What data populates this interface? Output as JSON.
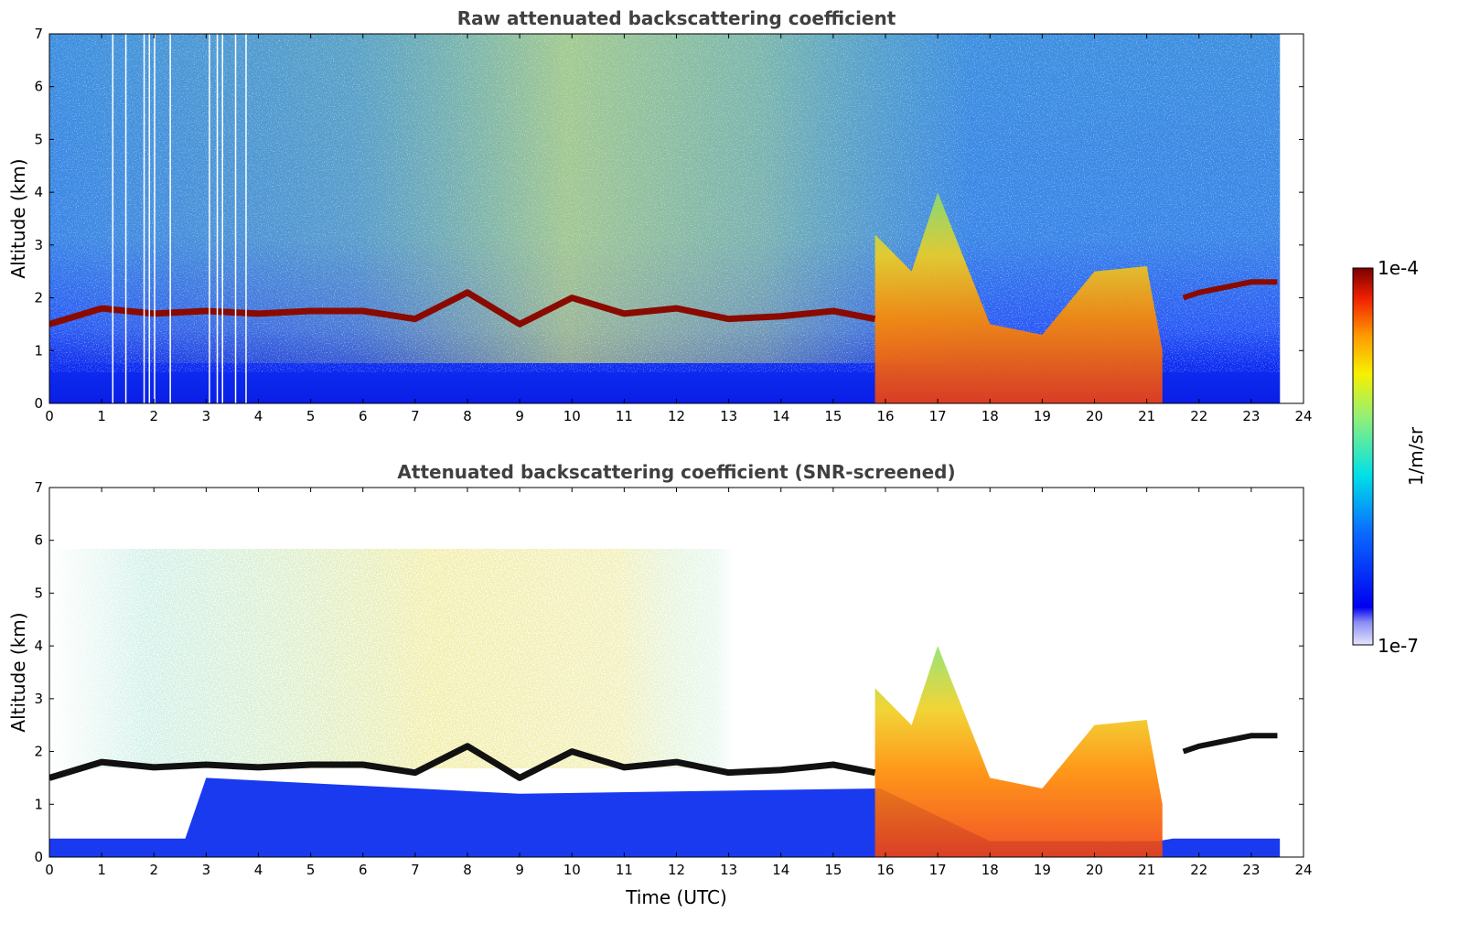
{
  "chart_data": [
    {
      "type": "heatmap",
      "title": "Raw attenuated backscattering coefficient",
      "xlabel": "",
      "ylabel": "Altitude (km)",
      "xlim": [
        0,
        24
      ],
      "ylim": [
        0,
        7
      ],
      "xticks": [
        "0",
        "1",
        "2",
        "3",
        "4",
        "5",
        "6",
        "7",
        "8",
        "9",
        "10",
        "11",
        "12",
        "13",
        "14",
        "15",
        "16",
        "17",
        "18",
        "19",
        "20",
        "21",
        "22",
        "23",
        "24"
      ],
      "yticks": [
        "0",
        "1",
        "2",
        "3",
        "4",
        "5",
        "6",
        "7"
      ],
      "data_extent_hours": 23.55,
      "cloud_layer": {
        "time_h": [
          0.0,
          1.0,
          2.0,
          3.0,
          4.0,
          5.0,
          6.0,
          7.0,
          8.0,
          9.0,
          10.0,
          11.0,
          12.0,
          13.0,
          14.0,
          15.0,
          15.8
        ],
        "altitude_km": [
          1.5,
          1.8,
          1.7,
          1.75,
          1.7,
          1.75,
          1.75,
          1.6,
          2.1,
          1.5,
          2.0,
          1.7,
          1.8,
          1.6,
          1.65,
          1.75,
          1.6
        ]
      },
      "precip_band": {
        "time_h": [
          15.8,
          16.5,
          17.0,
          18.0,
          19.0,
          20.0,
          21.0
        ],
        "top_km": [
          3.2,
          2.5,
          4.0,
          1.5,
          1.3,
          2.5,
          2.6
        ]
      },
      "late_layer": {
        "time_h": [
          21.7,
          22.0,
          23.0,
          23.5
        ],
        "altitude_km": [
          2.0,
          2.1,
          2.3,
          2.3
        ]
      }
    },
    {
      "type": "heatmap",
      "title": "Attenuated backscattering coefficient (SNR-screened)",
      "xlabel": "Time (UTC)",
      "ylabel": "Altitude (km)",
      "xlim": [
        0,
        24
      ],
      "ylim": [
        0,
        7
      ],
      "xticks": [
        "0",
        "1",
        "2",
        "3",
        "4",
        "5",
        "6",
        "7",
        "8",
        "9",
        "10",
        "11",
        "12",
        "13",
        "14",
        "15",
        "16",
        "17",
        "18",
        "19",
        "20",
        "21",
        "22",
        "23",
        "24"
      ],
      "yticks": [
        "0",
        "1",
        "2",
        "3",
        "4",
        "5",
        "6",
        "7"
      ],
      "data_extent_hours": 23.55
    }
  ],
  "colorbar": {
    "label": "1/m/sr",
    "max_label": "1e-4",
    "min_label": "1e-7",
    "scale": "log",
    "range": [
      1e-07,
      0.0001
    ],
    "colormap": "jet"
  },
  "colors": {
    "title_gray": "#404040",
    "axis": "#000000"
  }
}
